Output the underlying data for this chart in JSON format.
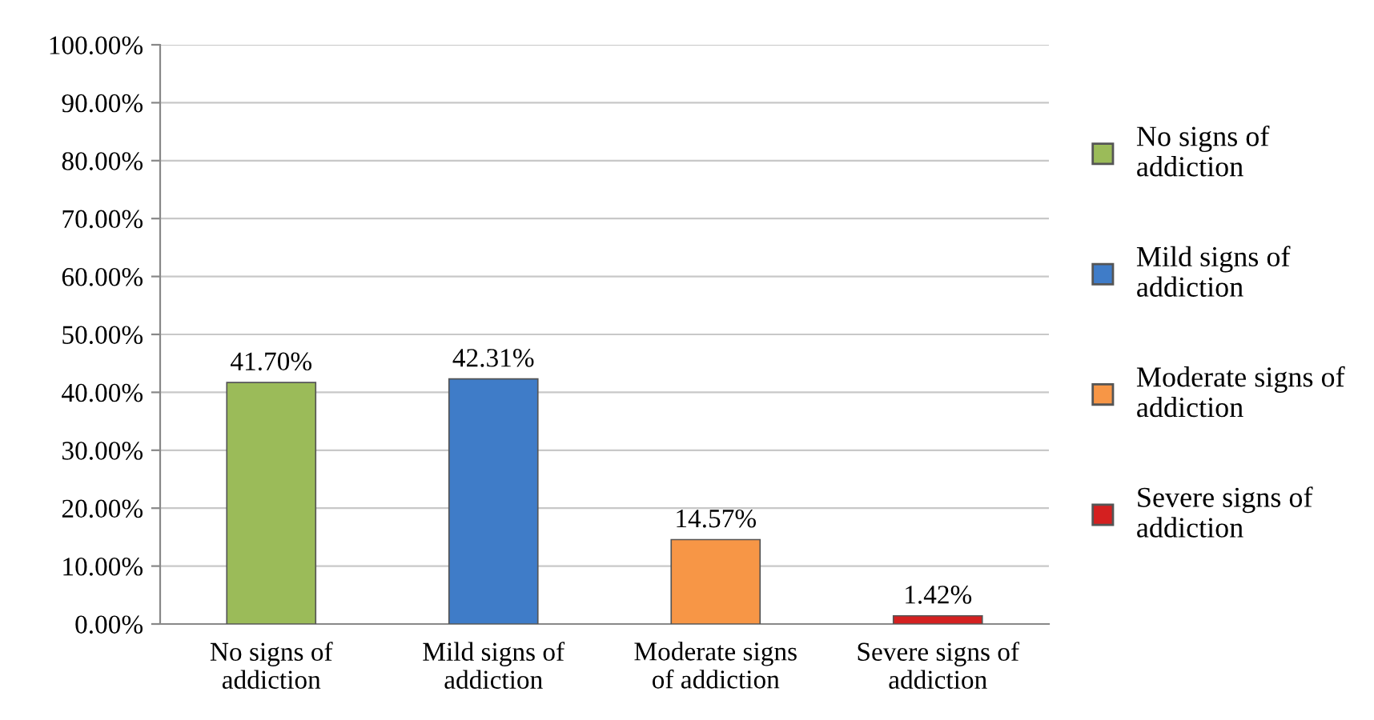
{
  "chart_data": {
    "type": "bar",
    "categories": [
      "No signs of\naddiction",
      "Mild signs of\naddiction",
      "Moderate signs\nof addiction",
      "Severe signs of\naddiction"
    ],
    "series": [
      {
        "name": "No signs of\naddiction",
        "color": "#9bbb59",
        "values": [
          41.7,
          null,
          null,
          null
        ],
        "value_labels": [
          "41.70%",
          null,
          null,
          null
        ]
      },
      {
        "name": "Mild signs of\naddiction",
        "color": "#3f7cc8",
        "values": [
          null,
          42.31,
          null,
          null
        ],
        "value_labels": [
          null,
          "42.31%",
          null,
          null
        ]
      },
      {
        "name": "Moderate signs of\naddiction",
        "color": "#f79646",
        "values": [
          null,
          null,
          14.57,
          null
        ],
        "value_labels": [
          null,
          null,
          "14.57%",
          null
        ]
      },
      {
        "name": "Severe signs of\naddiction",
        "color": "#d42020",
        "values": [
          null,
          null,
          null,
          1.42
        ],
        "value_labels": [
          null,
          null,
          null,
          "1.42%"
        ]
      }
    ],
    "ylim": [
      0,
      100
    ],
    "yticks": [
      {
        "value": 0,
        "label": "0.00%"
      },
      {
        "value": 10,
        "label": "10.00%"
      },
      {
        "value": 20,
        "label": "20.00%"
      },
      {
        "value": 30,
        "label": "30.00%"
      },
      {
        "value": 40,
        "label": "40.00%"
      },
      {
        "value": 50,
        "label": "50.00%"
      },
      {
        "value": 60,
        "label": "60.00%"
      },
      {
        "value": 70,
        "label": "70.00%"
      },
      {
        "value": 80,
        "label": "80.00%"
      },
      {
        "value": 90,
        "label": "90.00%"
      },
      {
        "value": 100,
        "label": "100.00%"
      }
    ],
    "grid": "y",
    "legend": "right"
  }
}
